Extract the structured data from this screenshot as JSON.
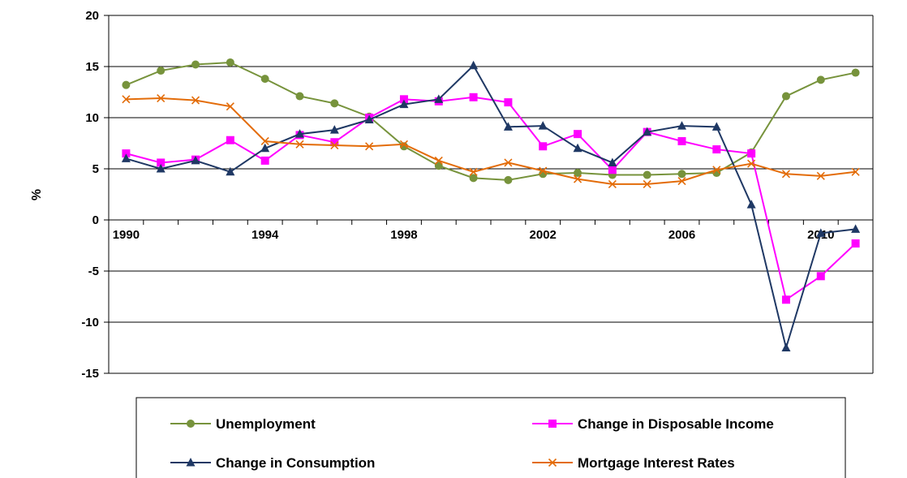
{
  "chart_data": {
    "type": "line",
    "ylabel": "%",
    "ylim": [
      -15,
      20
    ],
    "y_ticks": [
      20,
      15,
      10,
      5,
      0,
      -5,
      -10,
      -15
    ],
    "x": [
      1990,
      1991,
      1992,
      1993,
      1994,
      1995,
      1996,
      1997,
      1998,
      1999,
      2000,
      2001,
      2002,
      2003,
      2004,
      2005,
      2006,
      2007,
      2008,
      2009,
      2010,
      2011
    ],
    "x_tick_labels": [
      "1990",
      "1994",
      "1998",
      "2002",
      "2006",
      "2010"
    ],
    "x_tick_values": [
      1990,
      1994,
      1998,
      2002,
      2006,
      2010
    ],
    "grid": "horizontal",
    "legend_position": "bottom",
    "series": [
      {
        "name": "Unemployment",
        "color": "#77933C",
        "marker": "circle",
        "values": [
          13.2,
          14.6,
          15.2,
          15.4,
          13.8,
          12.1,
          11.4,
          10.1,
          7.2,
          5.3,
          4.1,
          3.9,
          4.5,
          4.6,
          4.4,
          4.4,
          4.5,
          4.6,
          6.6,
          12.1,
          13.7,
          14.4
        ]
      },
      {
        "name": "Change in Disposable Income",
        "color": "#FF00FF",
        "marker": "square",
        "values": [
          6.5,
          5.6,
          5.9,
          7.8,
          5.8,
          8.3,
          7.6,
          10.0,
          11.8,
          11.6,
          12.0,
          11.5,
          7.2,
          8.4,
          4.9,
          8.6,
          7.7,
          6.9,
          6.5,
          -7.8,
          -5.5,
          -2.3
        ]
      },
      {
        "name": "Change in Consumption",
        "color": "#1F3864",
        "marker": "triangle",
        "values": [
          6.0,
          5.0,
          5.8,
          4.7,
          7.0,
          8.4,
          8.8,
          9.8,
          11.3,
          11.8,
          15.1,
          9.1,
          9.2,
          7.0,
          5.6,
          8.6,
          9.2,
          9.1,
          1.5,
          -12.5,
          -1.3,
          -0.9
        ]
      },
      {
        "name": "Mortgage Interest Rates",
        "color": "#E36C09",
        "marker": "x",
        "values": [
          11.8,
          11.9,
          11.7,
          11.1,
          7.7,
          7.4,
          7.3,
          7.2,
          7.4,
          5.8,
          4.7,
          5.6,
          4.8,
          4.0,
          3.5,
          3.5,
          3.8,
          4.9,
          5.5,
          4.5,
          4.3,
          4.7
        ]
      }
    ]
  }
}
